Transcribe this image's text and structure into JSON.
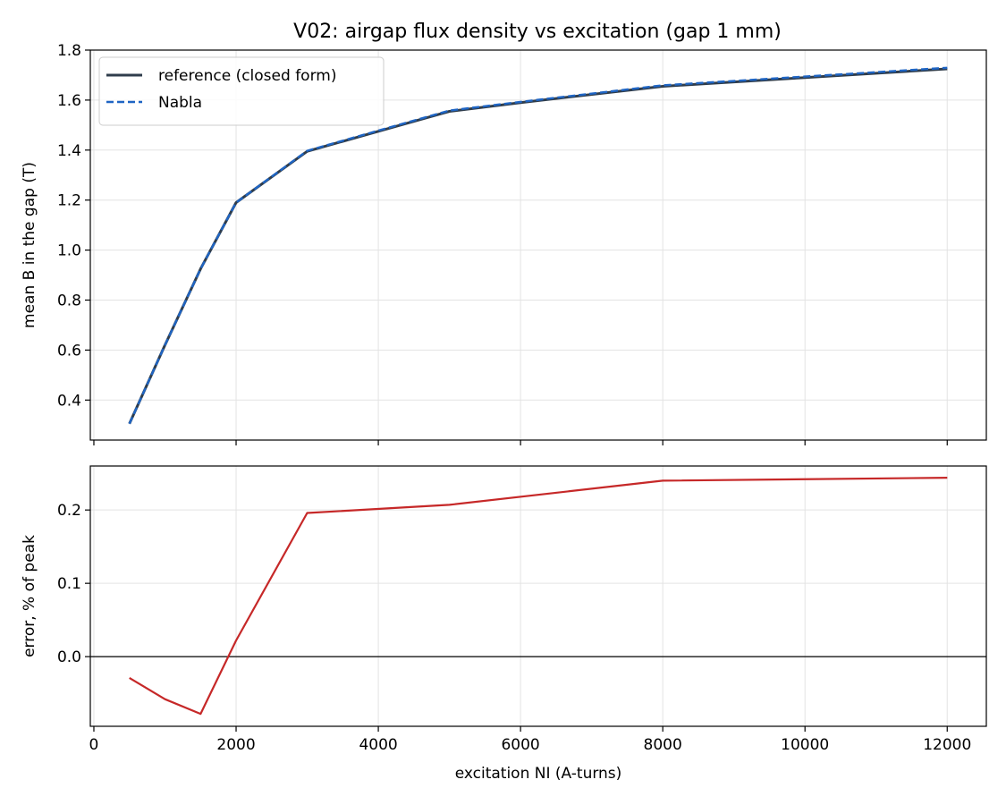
{
  "figure": {
    "title": "V02: airgap flux density vs excitation (gap 1 mm)"
  },
  "colors": {
    "reference": "#2f3d4c",
    "nabla": "#1f65c4",
    "error": "#c62828",
    "grid": "#e3e3e3",
    "axes": "#000000"
  },
  "chart_data": [
    {
      "type": "line",
      "title": "V02: airgap flux density vs excitation (gap 1 mm)",
      "xlabel": "",
      "ylabel": "mean B in the gap (T)",
      "xlim": [
        -50,
        12550
      ],
      "ylim": [
        0.24,
        1.8
      ],
      "xticks": [
        0,
        2000,
        4000,
        6000,
        8000,
        10000,
        12000
      ],
      "xticklabels_visible": false,
      "yticks": [
        0.4,
        0.6,
        0.8,
        1.0,
        1.2,
        1.4,
        1.6,
        1.8
      ],
      "yticklabels": [
        "0.4",
        "0.6",
        "0.8",
        "1.0",
        "1.2",
        "1.4",
        "1.6",
        "1.8"
      ],
      "grid": true,
      "legend": "upper-left",
      "series": [
        {
          "name": "reference (closed form)",
          "style": "solid",
          "x": [
            500,
            1000,
            1500,
            2000,
            3000,
            4000,
            5000,
            6000,
            8000,
            10000,
            12000
          ],
          "y": [
            0.305,
            0.62,
            0.925,
            1.19,
            1.395,
            1.475,
            1.555,
            1.59,
            1.655,
            1.69,
            1.725
          ]
        },
        {
          "name": "Nabla",
          "style": "dashed",
          "x": [
            500,
            1000,
            1500,
            2000,
            3000,
            4000,
            5000,
            6000,
            8000,
            10000,
            12000
          ],
          "y": [
            0.305,
            0.62,
            0.925,
            1.19,
            1.397,
            1.478,
            1.558,
            1.593,
            1.659,
            1.694,
            1.729
          ]
        }
      ]
    },
    {
      "type": "line",
      "xlabel": "excitation NI (A-turns)",
      "ylabel": "error, % of peak",
      "xlim": [
        -50,
        12550
      ],
      "ylim": [
        -0.095,
        0.26
      ],
      "xticks": [
        0,
        2000,
        4000,
        6000,
        8000,
        10000,
        12000
      ],
      "xticklabels": [
        "0",
        "2000",
        "4000",
        "6000",
        "8000",
        "10000",
        "12000"
      ],
      "yticks": [
        0.0,
        0.1,
        0.2
      ],
      "yticklabels": [
        "0.0",
        "0.1",
        "0.2"
      ],
      "grid": true,
      "zero_line": 0,
      "series": [
        {
          "name": "",
          "style": "solid",
          "x": [
            500,
            1000,
            1500,
            2000,
            3000,
            5000,
            8000,
            12000
          ],
          "y": [
            -0.029,
            -0.058,
            -0.078,
            0.022,
            0.196,
            0.207,
            0.24,
            0.244
          ]
        }
      ]
    }
  ]
}
